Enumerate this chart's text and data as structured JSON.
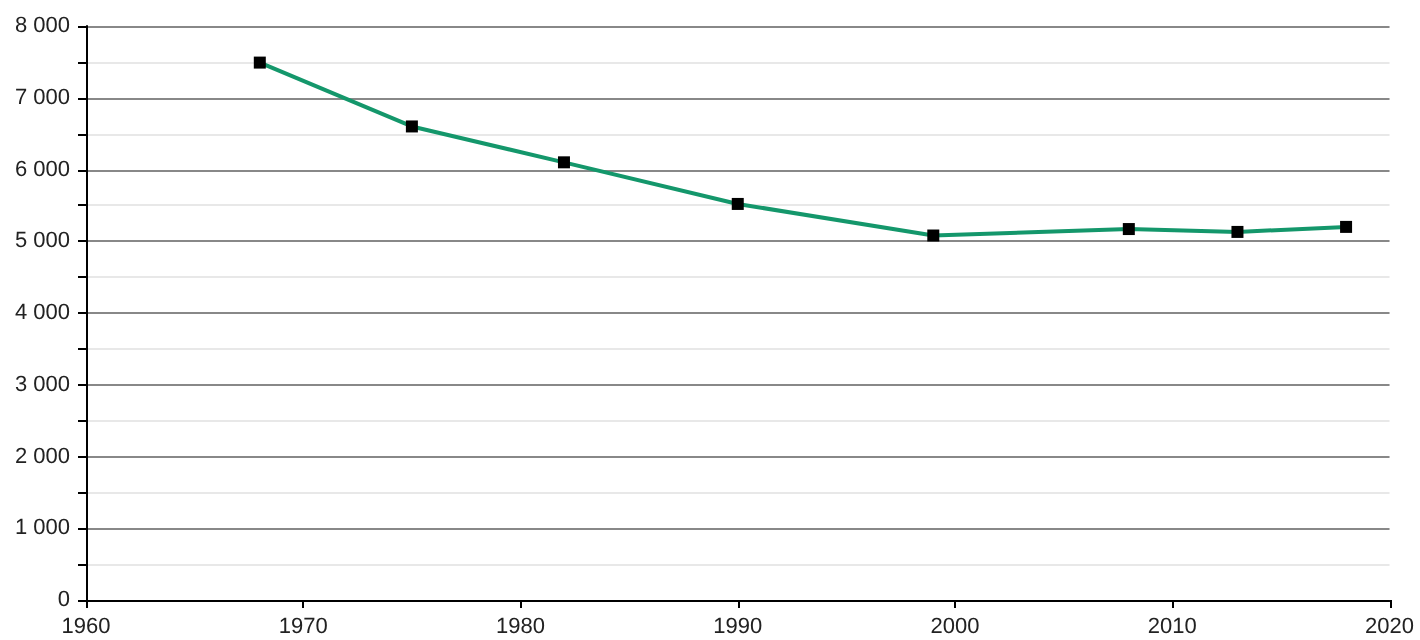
{
  "chart_data": {
    "type": "line",
    "x": [
      1968,
      1975,
      1982,
      1990,
      1999,
      2008,
      2013,
      2018
    ],
    "series": [
      {
        "color": "#14976b",
        "values": [
          7490,
          6600,
          6100,
          5520,
          5080,
          5170,
          5130,
          5200
        ]
      }
    ],
    "xlim": [
      1960,
      2020
    ],
    "xticks": [
      1960,
      1970,
      1980,
      1990,
      2000,
      2010,
      2020
    ],
    "ylim": [
      0,
      8000
    ],
    "yticks": [
      {
        "value": 0,
        "label": "0"
      },
      {
        "value": 500,
        "label": null
      },
      {
        "value": 1000,
        "label": "1 000"
      },
      {
        "value": 1500,
        "label": null
      },
      {
        "value": 2000,
        "label": "2 000"
      },
      {
        "value": 2500,
        "label": null
      },
      {
        "value": 3000,
        "label": "3 000"
      },
      {
        "value": 3500,
        "label": null
      },
      {
        "value": 4000,
        "label": "4 000"
      },
      {
        "value": 4500,
        "label": null
      },
      {
        "value": 5000,
        "label": "5 000"
      },
      {
        "value": 5500,
        "label": null
      },
      {
        "value": 6000,
        "label": "6 000"
      },
      {
        "value": 6500,
        "label": null
      },
      {
        "value": 7000,
        "label": "7 000"
      },
      {
        "value": 7500,
        "label": null
      },
      {
        "value": 8000,
        "label": "8 000"
      }
    ],
    "grid": "y",
    "marker": "square",
    "line_style": "solid"
  }
}
